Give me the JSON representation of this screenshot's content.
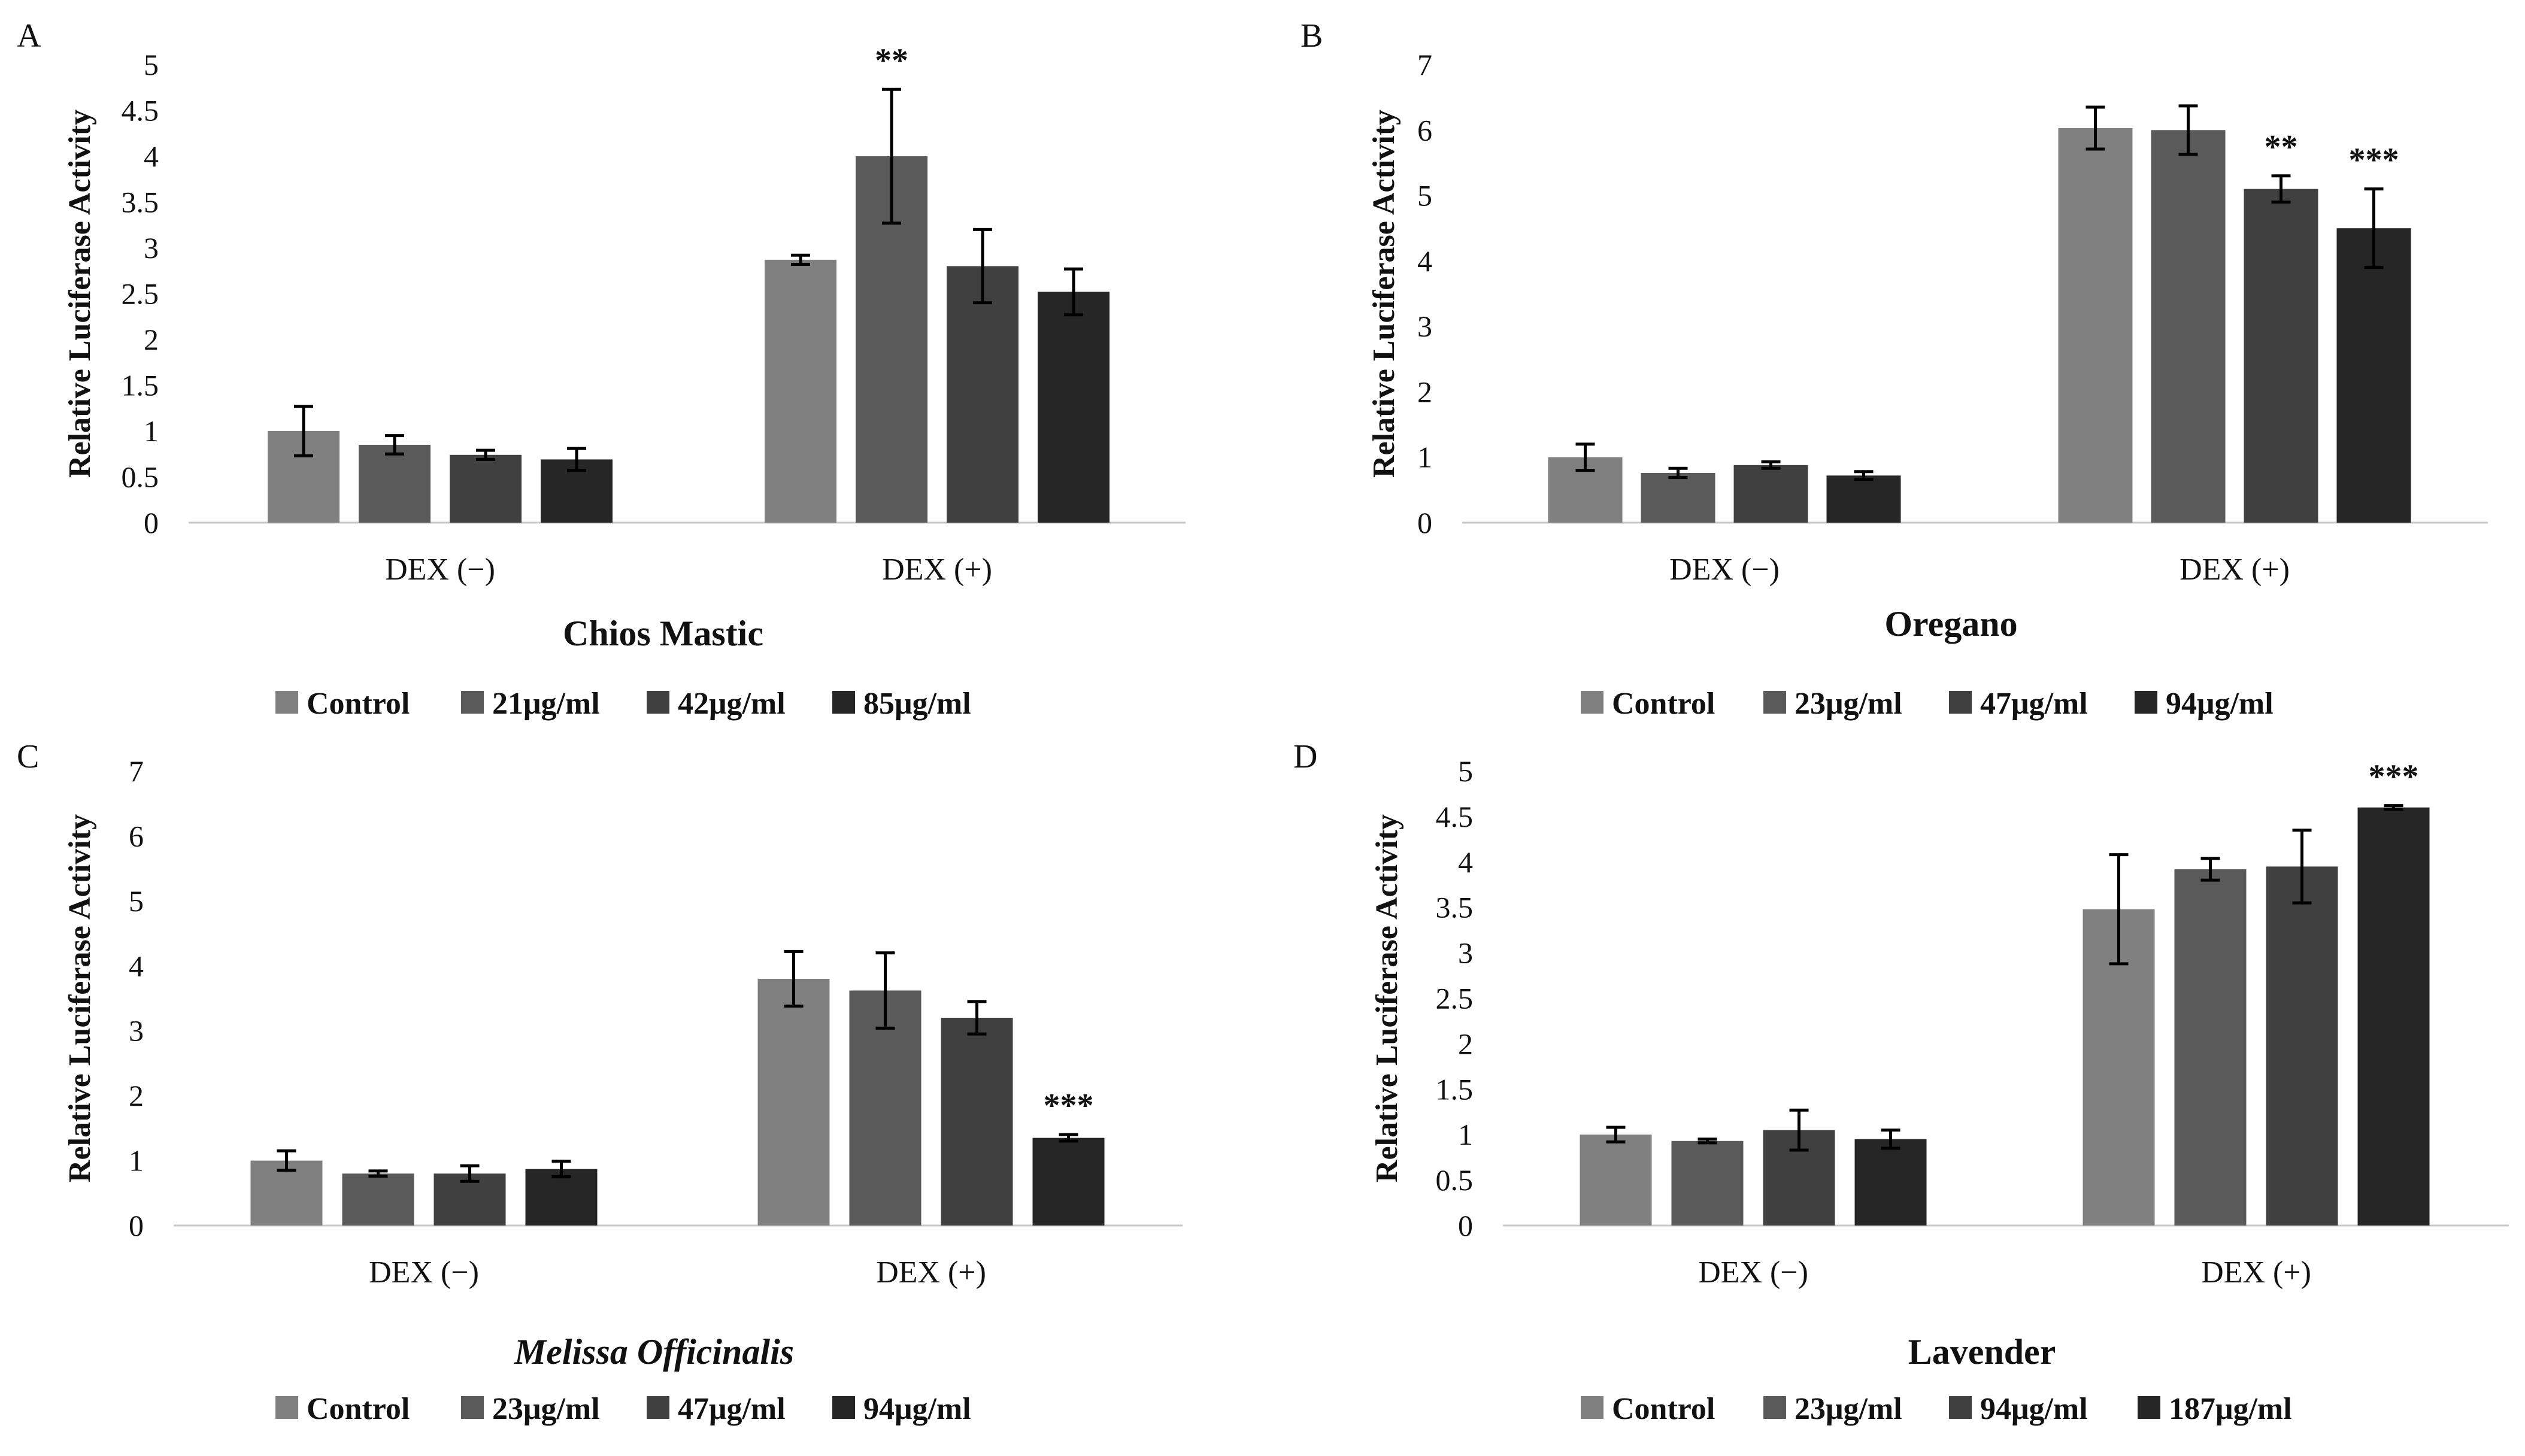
{
  "chart_data": [
    {
      "type": "bar",
      "panel": "A",
      "title": "Chios Mastic",
      "title_italic": false,
      "ylabel": "Relative Luciferase Activity",
      "xlabel": "",
      "ylim": [
        0,
        5
      ],
      "yticks": [
        "0",
        "0.5",
        "1",
        "1.5",
        "2",
        "2.5",
        "3",
        "3.5",
        "4",
        "4.5",
        "5"
      ],
      "tick_values": [
        0,
        0.5,
        1,
        1.5,
        2,
        2.5,
        3,
        3.5,
        4,
        4.5,
        5
      ],
      "categories": [
        "DEX (−)",
        "DEX (+)"
      ],
      "series": [
        {
          "name": "Control",
          "color": "#808080",
          "values": [
            1.0,
            2.87
          ],
          "errors": [
            0.27,
            0.05
          ],
          "stars": [
            "",
            ""
          ]
        },
        {
          "name": "21μg/ml",
          "color": "#5a5a5a",
          "values": [
            0.85,
            4.0
          ],
          "errors": [
            0.1,
            0.73
          ],
          "stars": [
            "",
            "**"
          ]
        },
        {
          "name": "42μg/ml",
          "color": "#404040",
          "values": [
            0.74,
            2.8
          ],
          "errors": [
            0.05,
            0.4
          ],
          "stars": [
            "",
            ""
          ]
        },
        {
          "name": "85μg/ml",
          "color": "#262626",
          "values": [
            0.69,
            2.52
          ],
          "errors": [
            0.12,
            0.25
          ],
          "stars": [
            "",
            ""
          ]
        }
      ],
      "legend_position": "bottom"
    },
    {
      "type": "bar",
      "panel": "B",
      "title": "Oregano",
      "title_italic": false,
      "ylabel": "Relative Luciferase Activity",
      "xlabel": "",
      "ylim": [
        0,
        7
      ],
      "yticks": [
        "0",
        "1",
        "2",
        "3",
        "4",
        "5",
        "6",
        "7"
      ],
      "tick_values": [
        0,
        1,
        2,
        3,
        4,
        5,
        6,
        7
      ],
      "categories": [
        "DEX (−)",
        "DEX (+)"
      ],
      "series": [
        {
          "name": "Control",
          "color": "#808080",
          "values": [
            1.0,
            6.03
          ],
          "errors": [
            0.2,
            0.32
          ],
          "stars": [
            "",
            ""
          ]
        },
        {
          "name": "23μg/ml",
          "color": "#5a5a5a",
          "values": [
            0.76,
            6.0
          ],
          "errors": [
            0.07,
            0.37
          ],
          "stars": [
            "",
            ""
          ]
        },
        {
          "name": "47μg/ml",
          "color": "#404040",
          "values": [
            0.88,
            5.1
          ],
          "errors": [
            0.05,
            0.2
          ],
          "stars": [
            "",
            "**"
          ]
        },
        {
          "name": "94μg/ml",
          "color": "#262626",
          "values": [
            0.72,
            4.5
          ],
          "errors": [
            0.06,
            0.6
          ],
          "stars": [
            "",
            "***"
          ]
        }
      ],
      "legend_position": "bottom"
    },
    {
      "type": "bar",
      "panel": "C",
      "title": "Melissa Officinalis",
      "title_italic": true,
      "ylabel": "Relative Luciferase Activity",
      "xlabel": "",
      "ylim": [
        0,
        7
      ],
      "yticks": [
        "0",
        "1",
        "2",
        "3",
        "4",
        "5",
        "6",
        "7"
      ],
      "tick_values": [
        0,
        1,
        2,
        3,
        4,
        5,
        6,
        7
      ],
      "categories": [
        "DEX (−)",
        "DEX (+)"
      ],
      "series": [
        {
          "name": "Control",
          "color": "#808080",
          "values": [
            1.0,
            3.8
          ],
          "errors": [
            0.15,
            0.42
          ],
          "stars": [
            "",
            ""
          ]
        },
        {
          "name": "23μg/ml",
          "color": "#5a5a5a",
          "values": [
            0.8,
            3.62
          ],
          "errors": [
            0.04,
            0.58
          ],
          "stars": [
            "",
            ""
          ]
        },
        {
          "name": "47μg/ml",
          "color": "#404040",
          "values": [
            0.8,
            3.2
          ],
          "errors": [
            0.12,
            0.25
          ],
          "stars": [
            "",
            ""
          ]
        },
        {
          "name": "94μg/ml",
          "color": "#262626",
          "values": [
            0.87,
            1.35
          ],
          "errors": [
            0.12,
            0.05
          ],
          "stars": [
            "",
            "***"
          ]
        }
      ],
      "legend_position": "bottom"
    },
    {
      "type": "bar",
      "panel": "D",
      "title": "Lavender",
      "title_italic": false,
      "ylabel": "Relative Luciferase Activity",
      "xlabel": "",
      "ylim": [
        0,
        5
      ],
      "yticks": [
        "0",
        "0.5",
        "1",
        "1.5",
        "2",
        "2.5",
        "3",
        "3.5",
        "4",
        "4.5",
        "5"
      ],
      "tick_values": [
        0,
        0.5,
        1,
        1.5,
        2,
        2.5,
        3,
        3.5,
        4,
        4.5,
        5
      ],
      "categories": [
        "DEX (−)",
        "DEX (+)"
      ],
      "series": [
        {
          "name": "Control",
          "color": "#808080",
          "values": [
            1.0,
            3.48
          ],
          "errors": [
            0.08,
            0.6
          ],
          "stars": [
            "",
            ""
          ]
        },
        {
          "name": "23μg/ml",
          "color": "#5a5a5a",
          "values": [
            0.93,
            3.92
          ],
          "errors": [
            0.02,
            0.12
          ],
          "stars": [
            "",
            ""
          ]
        },
        {
          "name": "94μg/ml",
          "color": "#404040",
          "values": [
            1.05,
            3.95
          ],
          "errors": [
            0.22,
            0.4
          ],
          "stars": [
            "",
            ""
          ]
        },
        {
          "name": "187μg/ml",
          "color": "#262626",
          "values": [
            0.95,
            4.6
          ],
          "errors": [
            0.1,
            0.02
          ],
          "stars": [
            "",
            "***"
          ]
        }
      ],
      "legend_position": "bottom"
    }
  ]
}
